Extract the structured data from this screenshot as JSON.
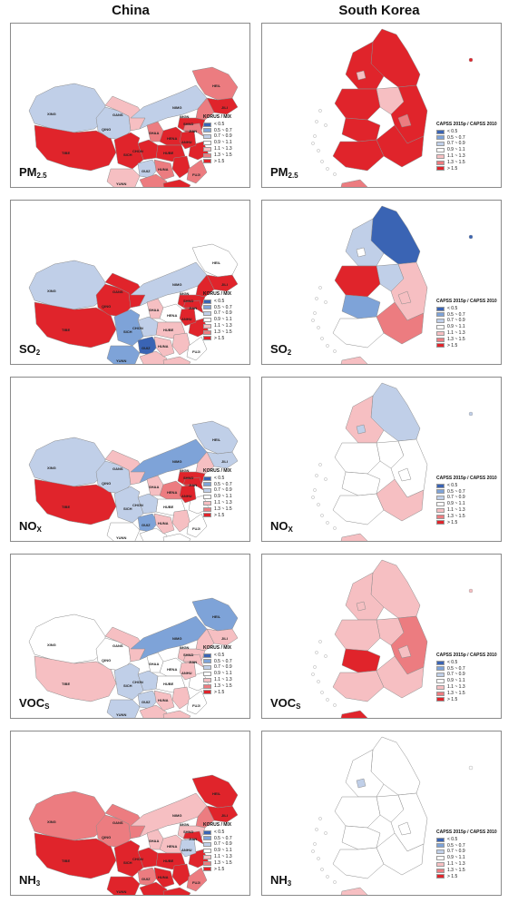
{
  "columns": {
    "china": "China",
    "korea": "South Korea"
  },
  "legend_china": {
    "title": "KORUS / MIX",
    "items": [
      "< 0.5",
      "0.5 ~ 0.7",
      "0.7 ~ 0.9",
      "0.9 ~ 1.1",
      "1.1 ~ 1.3",
      "1.3 ~ 1.5",
      "> 1.5"
    ]
  },
  "legend_korea": {
    "title": "CAPSS 2015p / CAPSS 2010",
    "items": [
      "< 0.5",
      "0.5 ~ 0.7",
      "0.7 ~ 0.9",
      "0.9 ~ 1.1",
      "1.1 ~ 1.3",
      "1.3 ~ 1.5",
      "> 1.5"
    ]
  },
  "legend_colors": [
    "#3a64b4",
    "#7ea3d8",
    "#c0cfe8",
    "#ffffff",
    "#f6bfc2",
    "#ec7c80",
    "#e0242b"
  ],
  "rows": [
    {
      "pollutant": "PM",
      "sub": "2.5",
      "china_labels": [
        "XING",
        "QING",
        "GANS",
        "NIMG",
        "SHAA",
        "HENA",
        "SHND",
        "HUBE",
        "CHON",
        "SICH",
        "HUNA",
        "GUIZ",
        "YUNN",
        "GUAN",
        "FUJI",
        "JIAN",
        "ANHU",
        "HEIL",
        "JILI",
        "IMGN",
        "TIBE"
      ],
      "china": {
        "XING": 2,
        "TIBE": 6,
        "QING": 2,
        "GANS": 4,
        "NIMG": 2,
        "HEIL": 5,
        "JILI": 6,
        "LIAO": 5,
        "SHAA": 5,
        "HENA": 6,
        "SHND": 6,
        "HUBE": 6,
        "CHON": 6,
        "SICH": 6,
        "YUNN": 4,
        "GUIZ": 2,
        "GUAN": 6,
        "GUAX": 5,
        "HUNA": 5,
        "JIAX": 6,
        "FUJI": 5,
        "ZHEJ": 6,
        "ANHU": 6,
        "JIAN": 5,
        "HAIN": 6
      },
      "korea": {
        "GW": 6,
        "GG": 6,
        "CB": 4,
        "CN": 6,
        "GB": 6,
        "JB": 6,
        "JN": 6,
        "GN": 6,
        "DG": 5,
        "SE": 4,
        "JJ": 5
      }
    },
    {
      "pollutant": "SO",
      "sub": "2",
      "china_labels": [
        "XING",
        "QING",
        "GANS",
        "NIMG",
        "SHAA",
        "HENA",
        "SHND",
        "HUBE",
        "CHON",
        "SICH",
        "HUNA",
        "GUIZ",
        "YUNN",
        "GUAN",
        "FUJI",
        "JIAN",
        "ANHU",
        "HEIL",
        "JILI",
        "IMGN",
        "TIBE",
        "HAIN"
      ],
      "china": {
        "XING": 2,
        "TIBE": 6,
        "QING": 6,
        "GANS": 6,
        "NIMG": 2,
        "HEIL": 3,
        "JILI": 6,
        "LIAO": 6,
        "SHAA": 4,
        "HENA": 3,
        "SHND": 6,
        "HUBE": 4,
        "CHON": 2,
        "SICH": 1,
        "YUNN": 1,
        "GUIZ": 0,
        "GUAN": 4,
        "GUAX": 4,
        "HUNA": 4,
        "JIAX": 4,
        "FUJI": 3,
        "ZHEJ": 6,
        "ANHU": 6,
        "JIAN": 6,
        "HAIN": 3
      },
      "korea": {
        "GW": 0,
        "GG": 2,
        "CB": 2,
        "CN": 6,
        "GB": 4,
        "JB": 1,
        "JN": 3,
        "GN": 5,
        "DG": 4,
        "SE": 3,
        "JJ": 4
      }
    },
    {
      "pollutant": "NO",
      "sub": "X",
      "china_labels": [
        "XING",
        "QING",
        "GANS",
        "NIMG",
        "SHAA",
        "HENA",
        "SHND",
        "HUBE",
        "CHON",
        "SICH",
        "HUNA",
        "GUIZ",
        "YUNN",
        "GUAN",
        "FUJI",
        "JIAN",
        "ANHU",
        "HEIL",
        "JILI",
        "IMGN",
        "TIBE",
        "HAIN"
      ],
      "china": {
        "XING": 2,
        "TIBE": 6,
        "QING": 2,
        "GANS": 4,
        "NIMG": 1,
        "HEIL": 2,
        "JILI": 2,
        "LIAO": 4,
        "SHAA": 4,
        "HENA": 5,
        "SHND": 6,
        "HUBE": 3,
        "CHON": 2,
        "SICH": 2,
        "YUNN": 3,
        "GUIZ": 1,
        "GUAN": 3,
        "GUAX": 3,
        "HUNA": 4,
        "JIAX": 4,
        "FUJI": 3,
        "ZHEJ": 3,
        "ANHU": 6,
        "JIAN": 6,
        "HAIN": 4
      },
      "korea": {
        "GW": 2,
        "GG": 4,
        "CB": 3,
        "CN": 3,
        "GB": 3,
        "JB": 3,
        "JN": 3,
        "GN": 4,
        "DG": 3,
        "SE": 2,
        "JJ": 4
      }
    },
    {
      "pollutant": "VOC",
      "sub": "S",
      "china_labels": [
        "XING",
        "QING",
        "GANS",
        "NIMG",
        "SHAA",
        "HENA",
        "SHND",
        "HUBE",
        "CHON",
        "SICH",
        "HUNA",
        "GUIZ",
        "YUNN",
        "GUAN",
        "FUJI",
        "JIAN",
        "ANHU",
        "HEIL",
        "JILI",
        "IMGN",
        "TIBE",
        "HAIN"
      ],
      "china": {
        "XING": 3,
        "TIBE": 4,
        "QING": 3,
        "GANS": 4,
        "NIMG": 1,
        "HEIL": 1,
        "JILI": 4,
        "LIAO": 4,
        "SHAA": 3,
        "HENA": 3,
        "SHND": 4,
        "HUBE": 3,
        "CHON": 2,
        "SICH": 2,
        "YUNN": 2,
        "GUIZ": 2,
        "GUAN": 4,
        "GUAX": 4,
        "HUNA": 4,
        "JIAX": 4,
        "FUJI": 3,
        "ZHEJ": 3,
        "ANHU": 4,
        "JIAN": 4,
        "HAIN": 6
      },
      "korea": {
        "GW": 4,
        "GG": 4,
        "CB": 4,
        "CN": 4,
        "GB": 5,
        "JB": 6,
        "JN": 4,
        "GN": 4,
        "DG": 4,
        "SE": 4,
        "JJ": 6
      }
    },
    {
      "pollutant": "NH",
      "sub": "3",
      "china_labels": [
        "XING",
        "QING",
        "GANS",
        "NIMG",
        "SHAA",
        "HENA",
        "SHND",
        "HUBE",
        "CHON",
        "SICH",
        "HUNA",
        "GUIZ",
        "YUNN",
        "GUAN",
        "FUJI",
        "JIAN",
        "ANHU",
        "HEIL",
        "JILI",
        "IMGN",
        "TIBE",
        "HAIN"
      ],
      "china": {
        "XING": 5,
        "TIBE": 6,
        "QING": 5,
        "GANS": 5,
        "NIMG": 4,
        "HEIL": 6,
        "JILI": 6,
        "LIAO": 5,
        "SHAA": 4,
        "HENA": 4,
        "SHND": 4,
        "HUBE": 6,
        "CHON": 6,
        "SICH": 6,
        "YUNN": 6,
        "GUIZ": 5,
        "GUAN": 6,
        "GUAX": 6,
        "HUNA": 6,
        "JIAX": 6,
        "FUJI": 5,
        "ZHEJ": 6,
        "ANHU": 2,
        "JIAN": 6,
        "HAIN": 6
      },
      "korea": {
        "GW": 3,
        "GG": 3,
        "CB": 3,
        "CN": 3,
        "GB": 3,
        "JB": 3,
        "JN": 3,
        "GN": 3,
        "DG": 3,
        "SE": 2,
        "JJ": 4
      }
    }
  ]
}
